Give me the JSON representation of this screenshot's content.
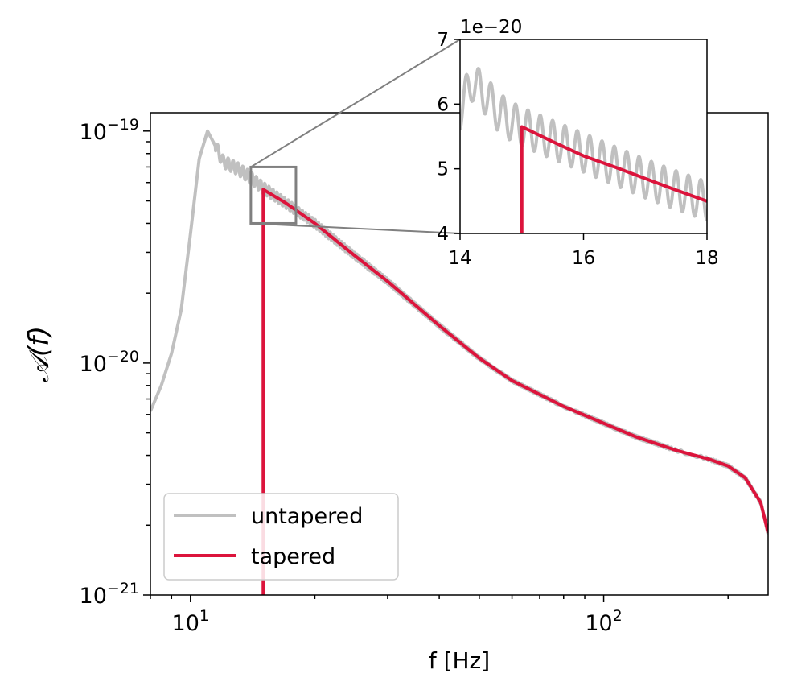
{
  "chart_data": [
    {
      "id": "main",
      "type": "line",
      "xlabel": "f [Hz]",
      "ylabel": "𝒜(f)",
      "xscale": "log",
      "yscale": "log",
      "xlim": [
        8,
        250
      ],
      "ylim": [
        1e-21,
        1.2e-19
      ],
      "x_ticks": [
        {
          "value": 10,
          "base": "10",
          "exp": "1"
        },
        {
          "value": 100,
          "base": "10",
          "exp": "2"
        }
      ],
      "y_ticks": [
        {
          "value": 1e-21,
          "base": "10",
          "exp": "−21"
        },
        {
          "value": 1e-20,
          "base": "10",
          "exp": "−20"
        },
        {
          "value": 1e-19,
          "base": "10",
          "exp": "−19"
        }
      ],
      "legend": {
        "position": "lower-left",
        "entries": [
          "untapered",
          "tapered"
        ]
      },
      "series": [
        {
          "name": "untapered",
          "color": "#c0c0c0",
          "x": [
            8,
            8.5,
            9,
            9.5,
            10,
            10.5,
            11,
            11.5,
            12,
            13,
            14,
            15,
            17,
            20,
            25,
            30,
            40,
            50,
            60,
            80,
            100,
            120,
            150,
            180,
            200,
            220,
            240,
            250
          ],
          "y": [
            6.2e-21,
            8e-21,
            1.1e-20,
            1.7e-20,
            3.6e-20,
            7.6e-20,
            1e-19,
            8.6e-20,
            7.4e-20,
            6.9e-20,
            6.3e-20,
            5.7e-20,
            4.9e-20,
            4e-20,
            2.9e-20,
            2.25e-20,
            1.45e-20,
            1.05e-20,
            8.4e-21,
            6.5e-21,
            5.5e-21,
            4.8e-21,
            4.2e-21,
            3.85e-21,
            3.6e-21,
            3.2e-21,
            2.5e-21,
            1.85e-21
          ],
          "oscillation": {
            "from": 11.5,
            "to": 250,
            "period_hz": 0.35,
            "relative_amplitude": 0.06
          }
        },
        {
          "name": "tapered",
          "color": "#dc143c",
          "x": [
            15,
            15,
            17,
            20,
            25,
            30,
            40,
            50,
            60,
            80,
            100,
            120,
            150,
            180,
            200,
            220,
            240,
            250
          ],
          "y": [
            1e-21,
            5.6e-20,
            4.9e-20,
            4e-20,
            2.9e-20,
            2.25e-20,
            1.45e-20,
            1.05e-20,
            8.4e-21,
            6.5e-21,
            5.5e-21,
            4.8e-21,
            4.2e-21,
            3.85e-21,
            3.6e-21,
            3.2e-21,
            2.5e-21,
            1.85e-21
          ]
        }
      ],
      "zoom_box": {
        "x": [
          14,
          18
        ],
        "y": [
          4e-20,
          7e-20
        ]
      }
    },
    {
      "id": "inset",
      "type": "line",
      "xlim": [
        14,
        18
      ],
      "ylim": [
        4,
        7
      ],
      "x_ticks": [
        "14",
        "16",
        "18"
      ],
      "y_ticks": [
        "4",
        "5",
        "6",
        "7"
      ],
      "y_offset_label": "1e−20",
      "series": [
        {
          "name": "untapered",
          "color": "#c0c0c0",
          "x": [
            14,
            14.1,
            14.2,
            14.4,
            14.6,
            14.8,
            15,
            15.5,
            16,
            16.5,
            17,
            17.5,
            18
          ],
          "y": [
            5.9,
            6.15,
            6.35,
            6.15,
            5.9,
            5.75,
            5.65,
            5.45,
            5.25,
            5.05,
            4.85,
            4.67,
            4.5
          ],
          "oscillation": {
            "period_hz": 0.2,
            "amplitude": 0.3
          }
        },
        {
          "name": "tapered",
          "color": "#dc143c",
          "x": [
            15,
            15,
            15.5,
            16,
            16.5,
            17,
            17.5,
            18
          ],
          "y": [
            4,
            5.65,
            5.42,
            5.2,
            5.03,
            4.85,
            4.67,
            4.5
          ]
        }
      ]
    }
  ]
}
